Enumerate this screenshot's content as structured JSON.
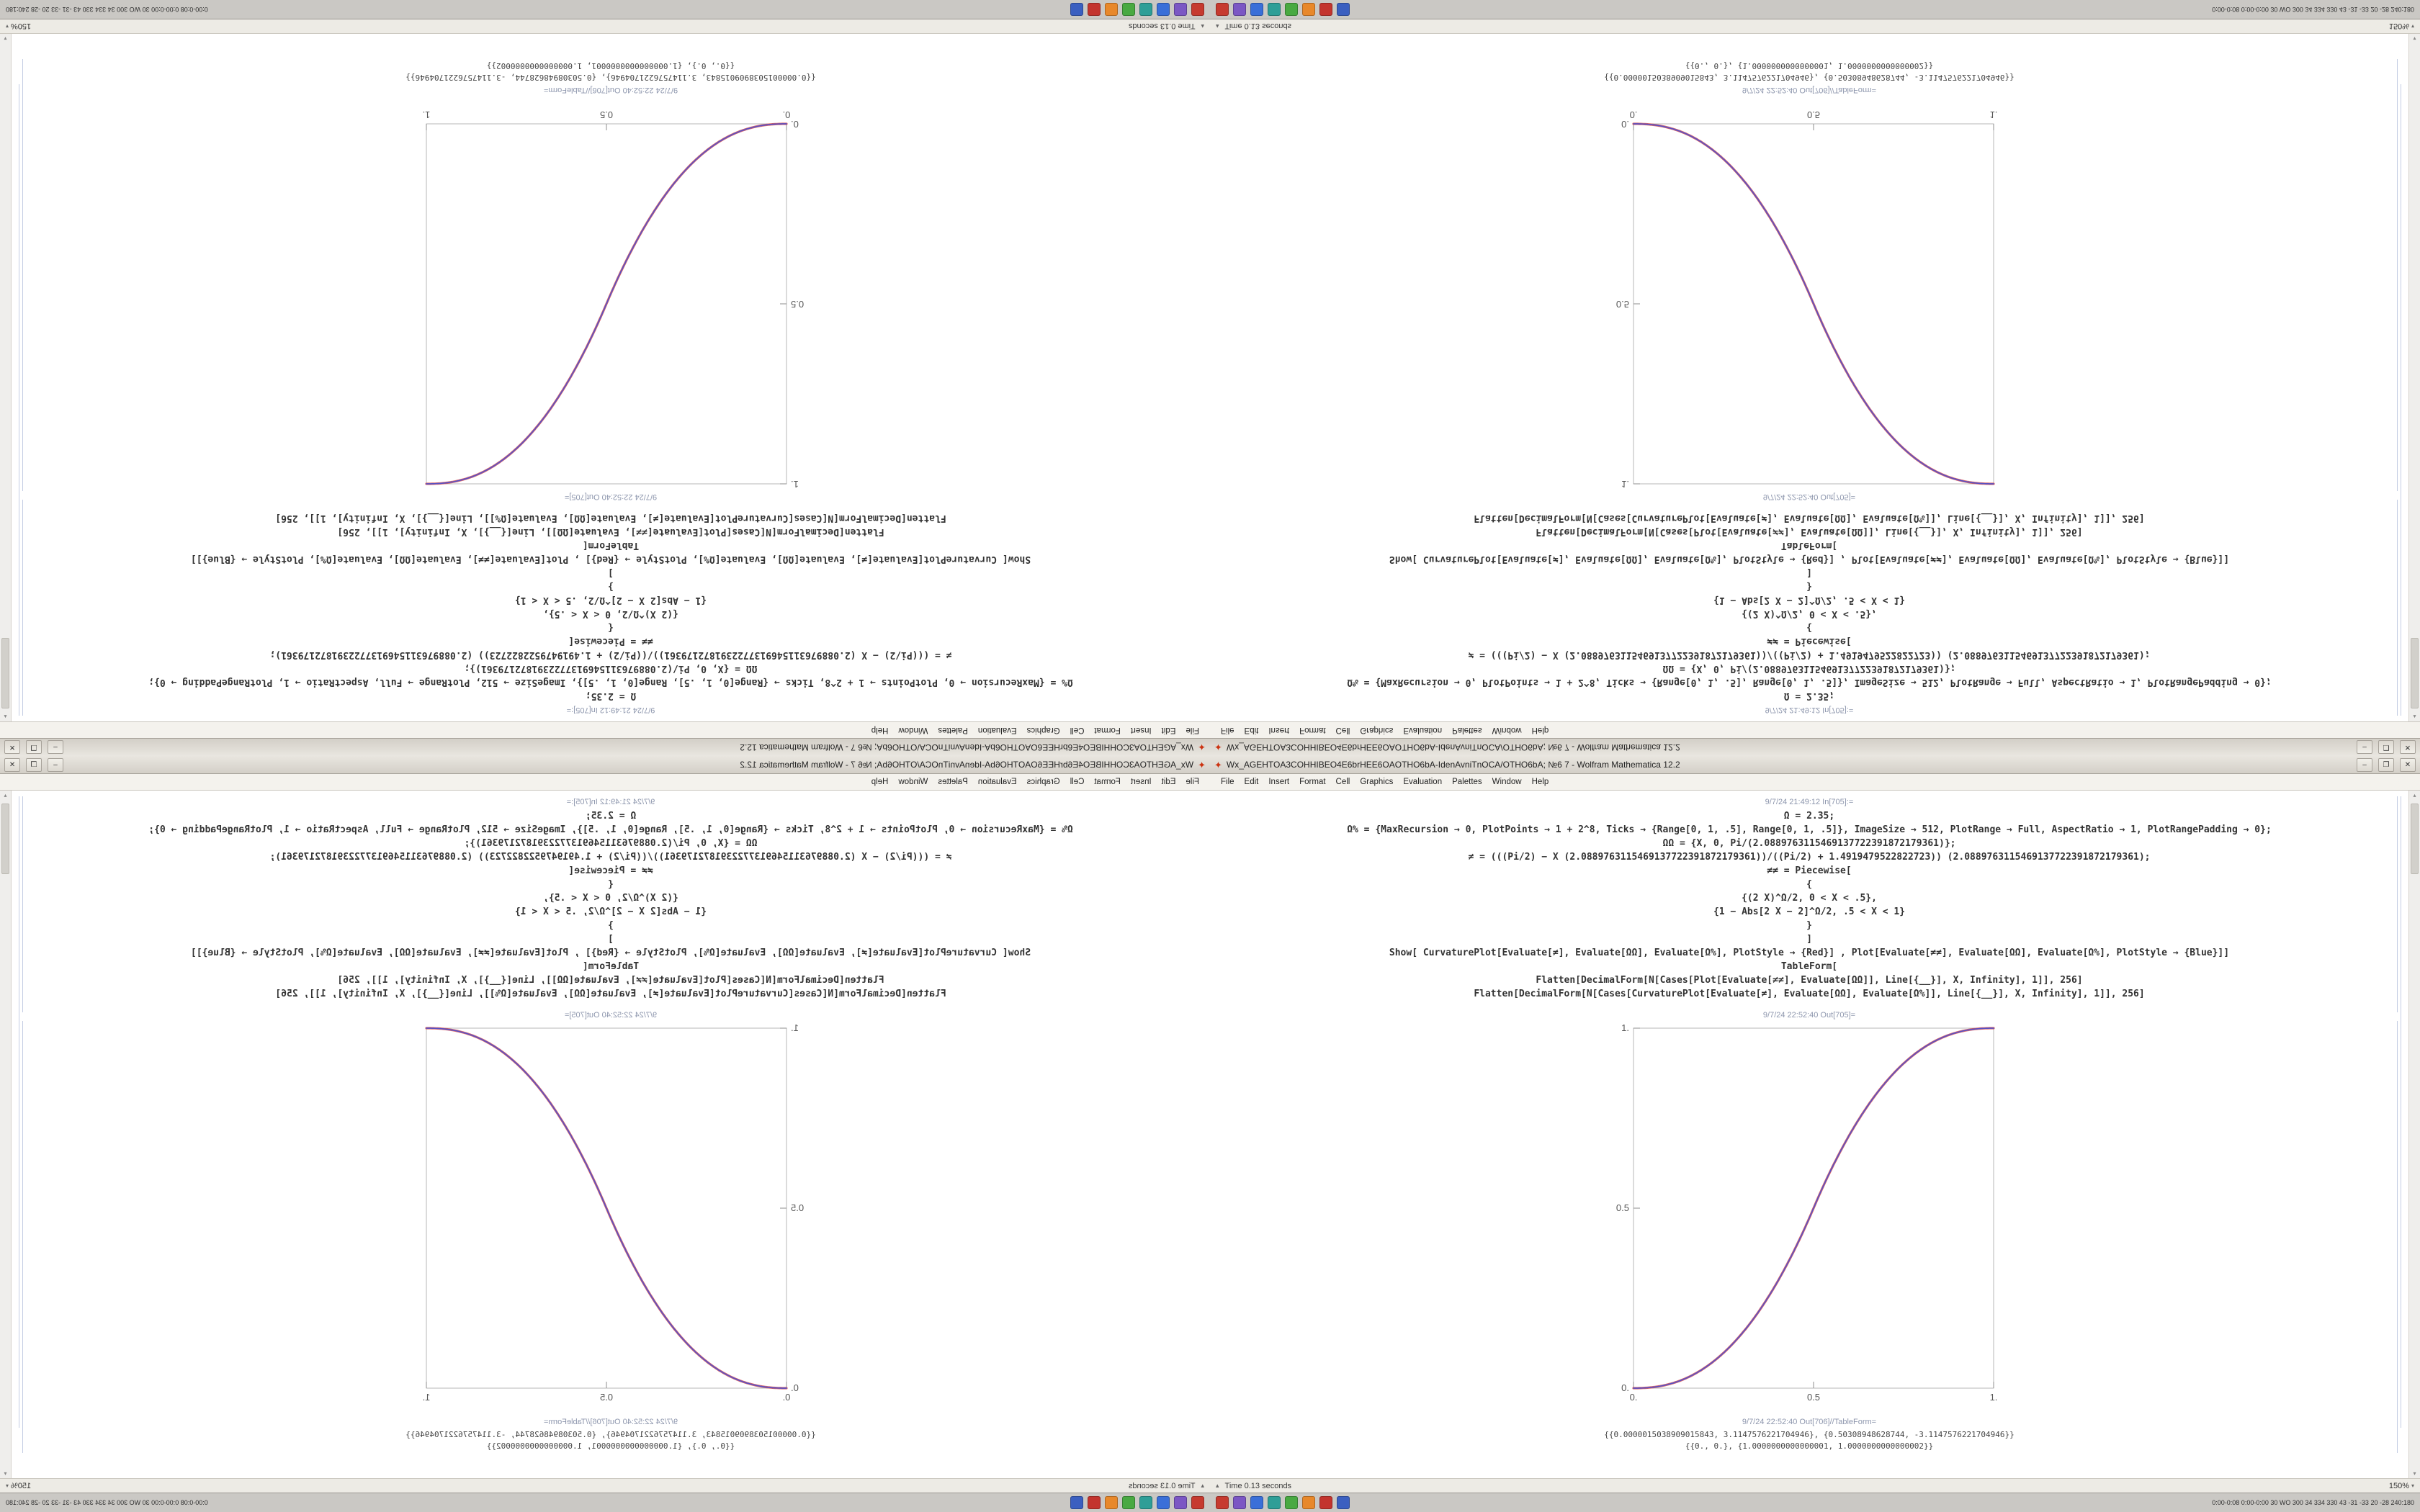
{
  "desktop": {
    "titlebar": {
      "app_icon_glyph": "✦",
      "app_icon_color": "#cc3311",
      "title": "Wx_AGEHTOA3COHHIBEO4E6brHEE6OAOTHO6bA-IdenAvniTnOCA/OTHO6bA; №6 7 - Wolfram Mathematica 12.2",
      "minimize": "–",
      "maximize": "❐",
      "close": "✕"
    },
    "menubar": {
      "menus": [
        "File",
        "Edit",
        "Insert",
        "Format",
        "Cell",
        "Graphics",
        "Evaluation",
        "Palettes",
        "Window",
        "Help"
      ]
    },
    "notebook": {
      "in_label": "9/7/24 21:49:12 In[705]:=",
      "code_lines": [
        "Ω = 2.35;",
        "Ω% = {MaxRecursion → 0, PlotPoints → 1 + 2^8, Ticks → {Range[0, 1, .5], Range[0, 1, .5]}, ImageSize → 512, PlotRange → Full, AspectRatio → 1, PlotRangePadding → 0};",
        "ΩΩ = {X, 0, Pi/(2.0889763115469137722391872179361)};",
        "≠ = (((Pi/2) − X (2.0889763115469137722391872179361))/((Pi/2) + 1.4919479522822723)) (2.0889763115469137722391872179361);",
        "≠≠ = Piecewise[",
        "{",
        "{(2 X)^Ω/2, 0 < X < .5},",
        "{1 − Abs[2 X − 2]^Ω/2, .5 < X < 1}",
        "}",
        "]",
        "Show[ CurvaturePlot[Evaluate[≠], Evaluate[ΩΩ], Evaluate[Ω%], PlotStyle → {Red}] , Plot[Evaluate[≠≠], Evaluate[ΩΩ], Evaluate[Ω%], PlotStyle → {Blue}]]",
        "TableForm[",
        "Flatten[DecimalForm[N[Cases[Plot[Evaluate[≠≠], Evaluate[ΩΩ]], Line[{__}], X, Infinity], 1]], 256]",
        "Flatten[DecimalForm[N[Cases[CurvaturePlot[Evaluate[≠], Evaluate[ΩΩ], Evaluate[Ω%]], Line[{__}], X, Infinity], 1]], 256]"
      ],
      "out_plot_label": "9/7/24 22:52:40 Out[705]=",
      "out_table_label": "9/7/24 22:52:40 Out[706]//TableForm=",
      "out_line_1": "{{0.0000015038909015843, 3.1147576221704946}, {0.50308948628744, -3.1147576221704946}}",
      "out_line_2": "{{0., 0.}, {1.0000000000000001, 1.0000000000000002}}"
    },
    "plot": {
      "type": "line",
      "description": "sigmoid smoothstep curve from (0,0) to (1,1), red and blue plots overlapping to look purple",
      "exponent": 2.35,
      "x_range": [
        0,
        1
      ],
      "y_range": [
        0,
        1
      ],
      "x_ticks": [
        "0.",
        "0.5",
        "1."
      ],
      "y_ticks": [
        "0.",
        "0.5",
        "1."
      ],
      "frame_color": "#b7b7b7",
      "curve_red": "#d94f4f",
      "curve_blue": "#5050c8"
    },
    "scrollbar": {
      "up": "▴",
      "down": "▾"
    },
    "statusbar": {
      "expander": "▴",
      "time_text": "Time 0.13 seconds",
      "magnification": "150%",
      "caret": "▾"
    },
    "taskbar": {
      "icons": [
        {
          "name": "taskbar-app-1",
          "color": "#c63a2f"
        },
        {
          "name": "taskbar-app-2",
          "color": "#7b57c4"
        },
        {
          "name": "taskbar-app-3",
          "color": "#3a6fd8"
        },
        {
          "name": "taskbar-app-4",
          "color": "#2e9e97"
        },
        {
          "name": "taskbar-app-5",
          "color": "#49a942"
        },
        {
          "name": "taskbar-app-6",
          "color": "#e8882a"
        },
        {
          "name": "taskbar-app-7",
          "color": "#c3342e"
        },
        {
          "name": "taskbar-app-8",
          "color": "#3b5fc0"
        }
      ],
      "tray_text": "0:00-0:08 0:00-0:00 30 WO 300 34 334 330 43 -31 -33 20 -28 240:180"
    }
  }
}
